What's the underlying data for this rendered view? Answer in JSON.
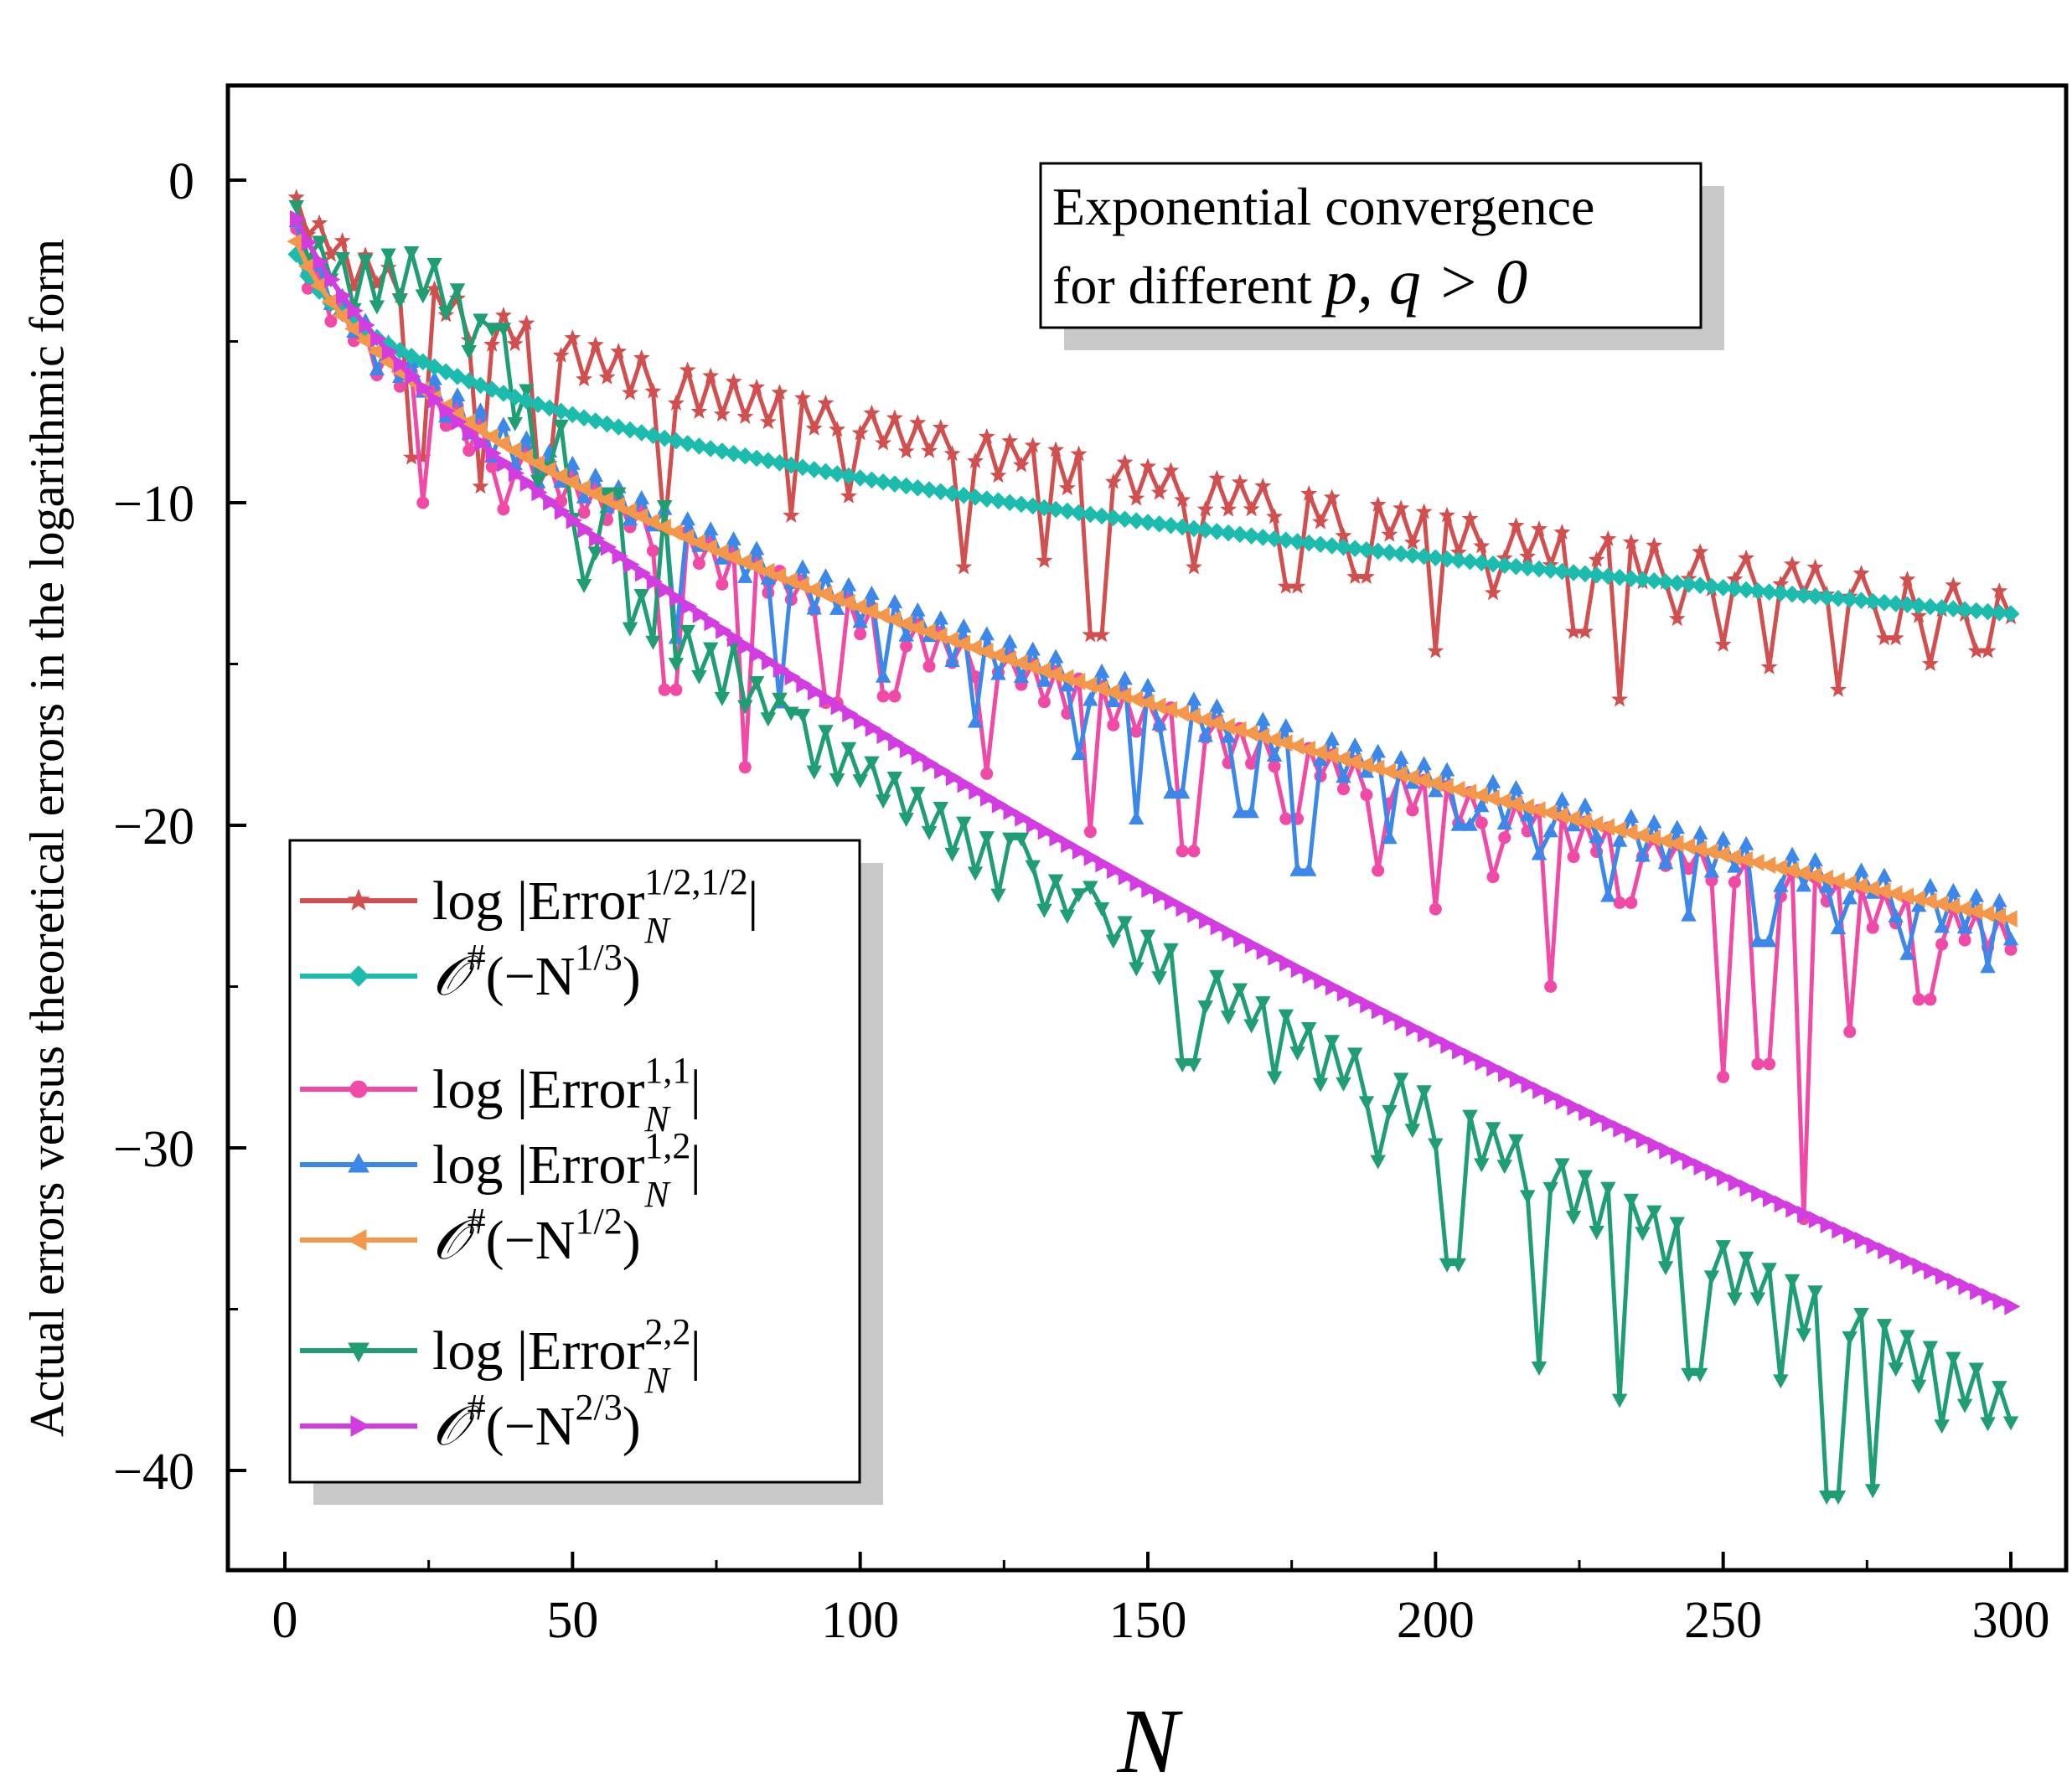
{
  "chart_data": {
    "type": "line",
    "title": "",
    "xlabel": "N",
    "ylabel": "Actual errors versus theoretical errors in the logarithmic form",
    "xlim": [
      -10,
      310
    ],
    "ylim": [
      -43,
      3
    ],
    "xticks": [
      0,
      50,
      100,
      150,
      200,
      250,
      300
    ],
    "xtick_labels": [
      "0",
      "50",
      "100",
      "150",
      "200",
      "250",
      "300"
    ],
    "yticks": [
      0,
      -10,
      -20,
      -30,
      -40
    ],
    "ytick_labels": [
      "0",
      "−10",
      "−20",
      "−30",
      "−40"
    ],
    "grid": false,
    "annotation": {
      "line1": "Exponential convergence",
      "line2_text": "for different ",
      "line2_math": "p, q > 0"
    },
    "legend_position": "bottom-left",
    "series": [
      {
        "name": "log |Error_N^{1/2,1/2}|",
        "legend": {
          "pre": "log |Error",
          "sup": "1/2,1/2",
          "sub": "N",
          "post": "|"
        },
        "color": "#d24f4f",
        "marker": "star",
        "envelope": "0.55 - 0.77*N^(1/2)",
        "dips": [
          [
            23,
            -8.6
          ],
          [
            34,
            -9.5
          ],
          [
            45,
            -9.0
          ],
          [
            66,
            -10.9
          ],
          [
            88,
            -10.4
          ],
          [
            98,
            -9.8
          ],
          [
            118,
            -12.0
          ],
          [
            132,
            -11.8
          ],
          [
            141,
            -14.1
          ],
          [
            158,
            -12.0
          ],
          [
            175,
            -12.6
          ],
          [
            187,
            -12.3
          ],
          [
            200,
            -14.6
          ],
          [
            210,
            -12.8
          ],
          [
            225,
            -14.0
          ],
          [
            232,
            -16.1
          ],
          [
            242,
            -13.6
          ],
          [
            250,
            -14.4
          ],
          [
            258,
            -15.1
          ],
          [
            270,
            -15.8
          ],
          [
            279,
            -14.2
          ],
          [
            286,
            -15.0
          ],
          [
            295,
            -14.6
          ]
        ]
      },
      {
        "name": "O#(-N^{1/3})",
        "legend": {
          "pre": "𝒪",
          "sup1": "#",
          "mid": "(−N",
          "sup": "1/3",
          "post": ")"
        },
        "color": "#1bbcad",
        "marker": "diamond",
        "formula": "-2.05*(N^(1/3) - 2^(1/3)) - 2.3"
      },
      {
        "name": "log |Error_N^{1,1}|",
        "legend": {
          "pre": "log |Error",
          "sup": "1,1",
          "sub": "N",
          "post": "|"
        },
        "color": "#f04aa6",
        "marker": "circle",
        "envelope": "-1.35*N^(1/2)",
        "dips": [
          [
            24,
            -10.0
          ],
          [
            38,
            -10.2
          ],
          [
            67,
            -15.8
          ],
          [
            80,
            -18.2
          ],
          [
            95,
            -16.2
          ],
          [
            105,
            -16.0
          ],
          [
            122,
            -18.4
          ],
          [
            140,
            -20.2
          ],
          [
            157,
            -20.8
          ],
          [
            175,
            -19.8
          ],
          [
            190,
            -21.4
          ],
          [
            200,
            -22.6
          ],
          [
            210,
            -21.6
          ],
          [
            220,
            -25.0
          ],
          [
            233,
            -22.4
          ],
          [
            250,
            -27.8
          ],
          [
            257,
            -27.4
          ],
          [
            264,
            -32.2
          ],
          [
            272,
            -26.4
          ],
          [
            285,
            -25.4
          ]
        ]
      },
      {
        "name": "log |Error_N^{1,2}|",
        "legend": {
          "pre": "log |Error",
          "sup": "1,2",
          "sub": "N",
          "post": "|"
        },
        "color": "#3c88ea",
        "marker": "triangle-up",
        "envelope": "-1.33*N^(1/2)",
        "dips": [
          [
            68,
            -14.2
          ],
          [
            86,
            -16.2
          ],
          [
            104,
            -15.4
          ],
          [
            120,
            -16.8
          ],
          [
            138,
            -17.8
          ],
          [
            148,
            -19.8
          ],
          [
            155,
            -19.0
          ],
          [
            167,
            -19.6
          ],
          [
            177,
            -21.4
          ],
          [
            192,
            -20.4
          ],
          [
            205,
            -20.0
          ],
          [
            218,
            -20.9
          ],
          [
            230,
            -22.2
          ],
          [
            244,
            -22.8
          ],
          [
            257,
            -23.6
          ],
          [
            270,
            -23.2
          ],
          [
            282,
            -24.0
          ],
          [
            296,
            -24.4
          ]
        ]
      },
      {
        "name": "O#(-N^{1/2})",
        "legend": {
          "pre": "𝒪",
          "sup1": "#",
          "mid": "(−N",
          "sup": "1/2",
          "post": ")"
        },
        "color": "#f4974a",
        "marker": "triangle-left",
        "formula": "-1.32*(N^(1/2) - 2^(1/2)) - 1.9"
      },
      {
        "name": "log |Error_N^{2,2}|",
        "legend": {
          "pre": "log |Error",
          "sup": "2,2",
          "sub": "N",
          "post": "|"
        },
        "color": "#1f9e72",
        "marker": "triangle-down",
        "envelope": "0.3 - 0.84*N^(2/3)",
        "bump": "+4.4*exp(-((N-26)/14)^2)",
        "dips": [
          [
            37,
            -4.6
          ],
          [
            42,
            -6.5
          ],
          [
            48,
            -7.6
          ],
          [
            57,
            -9.7
          ],
          [
            66,
            -10.1
          ],
          [
            78,
            -14.4
          ],
          [
            88,
            -16.5
          ],
          [
            98,
            -17.6
          ],
          [
            112,
            -20.2
          ],
          [
            127,
            -20.4
          ],
          [
            140,
            -21.9
          ],
          [
            157,
            -27.4
          ],
          [
            172,
            -27.8
          ],
          [
            190,
            -30.4
          ],
          [
            203,
            -33.6
          ],
          [
            218,
            -36.8
          ],
          [
            232,
            -37.8
          ],
          [
            245,
            -37.0
          ],
          [
            260,
            -37.2
          ],
          [
            269,
            -40.8
          ],
          [
            276,
            -40.6
          ],
          [
            288,
            -38.6
          ],
          [
            298,
            -37.4
          ]
        ]
      },
      {
        "name": "O#(-N^{2/3})",
        "legend": {
          "pre": "𝒪",
          "sup1": "#",
          "mid": "(−N",
          "sup": "2/3",
          "post": ")"
        },
        "color": "#d23ce0",
        "marker": "triangle-right",
        "formula": "-0.78*(N^(2/3) - 2^(2/3)) - 1.2"
      }
    ]
  }
}
